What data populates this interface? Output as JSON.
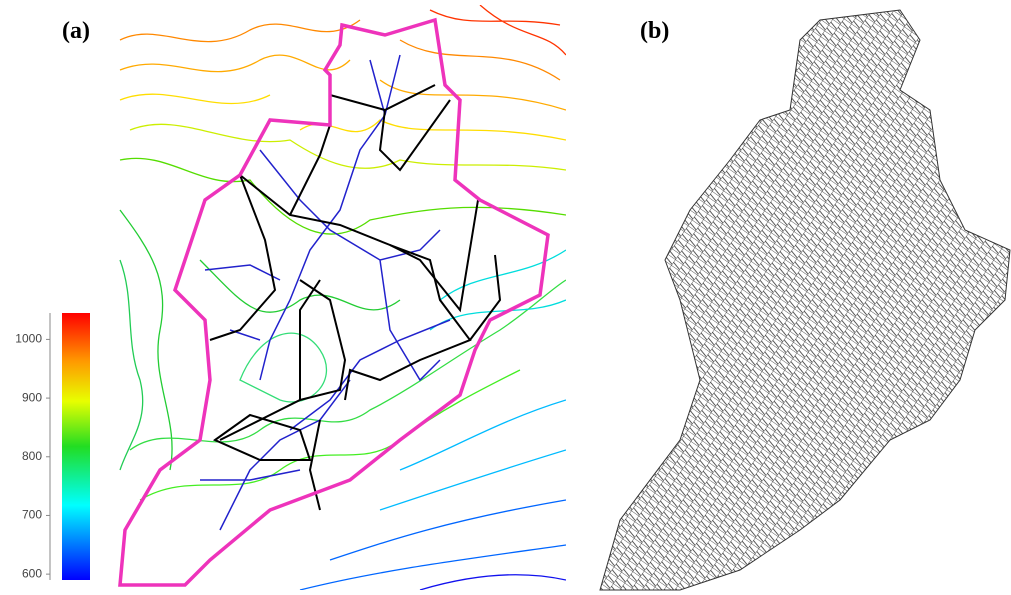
{
  "panels": [
    {
      "label": "(a)"
    },
    {
      "label": "(b)"
    }
  ],
  "colorbar": {
    "range": [
      590,
      1045
    ],
    "ticks": [
      600,
      700,
      800,
      900,
      1000
    ]
  }
}
